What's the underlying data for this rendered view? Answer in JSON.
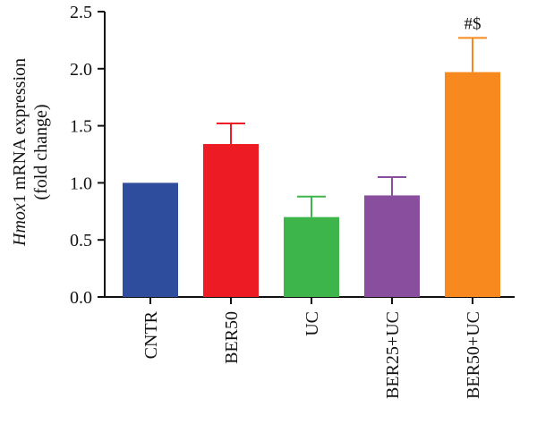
{
  "chart_data": {
    "type": "bar",
    "categories": [
      "CNTR",
      "BER50",
      "UC",
      "BER25+UC",
      "BER50+UC"
    ],
    "values": [
      1.0,
      1.34,
      0.7,
      0.89,
      1.97
    ],
    "error_upper": [
      0.0,
      0.18,
      0.18,
      0.16,
      0.3
    ],
    "colors": [
      "#2e4d9c",
      "#ed1c24",
      "#3db54a",
      "#8a4e9e",
      "#f7891f"
    ],
    "annotations": [
      {
        "category": "BER50+UC",
        "text": "#$"
      }
    ],
    "ylabel_italic": "Hmox",
    "ylabel_rest": "1 mRNA expression",
    "ylabel_line2": "(fold change)",
    "ylim": [
      0,
      2.5
    ],
    "yticks": [
      "0.0",
      "0.5",
      "1.0",
      "1.5",
      "2.0",
      "2.5"
    ],
    "grid": false
  }
}
